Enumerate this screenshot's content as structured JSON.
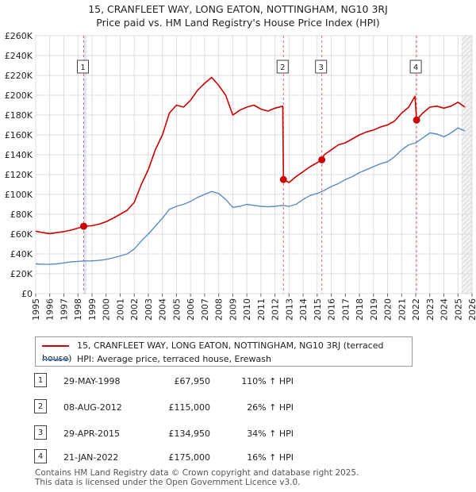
{
  "header": {
    "title_line1": "15, CRANFLEET WAY, LONG EATON, NOTTINGHAM, NG10 3RJ",
    "title_line2": "Price paid vs. HM Land Registry's House Price Index (HPI)"
  },
  "chart_data": {
    "type": "line",
    "xlim": [
      1995,
      2026
    ],
    "ylim": [
      0,
      260000
    ],
    "x_ticks": [
      "1995",
      "1996",
      "1997",
      "1998",
      "1999",
      "2000",
      "2001",
      "2002",
      "2003",
      "2004",
      "2005",
      "2006",
      "2007",
      "2008",
      "2009",
      "2010",
      "2011",
      "2012",
      "2013",
      "2014",
      "2015",
      "2016",
      "2017",
      "2018",
      "2019",
      "2020",
      "2021",
      "2022",
      "2023",
      "2024",
      "2025",
      "2026"
    ],
    "y_ticks": [
      {
        "value": 0,
        "label": "£0"
      },
      {
        "value": 20000,
        "label": "£20K"
      },
      {
        "value": 40000,
        "label": "£40K"
      },
      {
        "value": 60000,
        "label": "£60K"
      },
      {
        "value": 80000,
        "label": "£80K"
      },
      {
        "value": 100000,
        "label": "£100K"
      },
      {
        "value": 120000,
        "label": "£120K"
      },
      {
        "value": 140000,
        "label": "£140K"
      },
      {
        "value": 160000,
        "label": "£160K"
      },
      {
        "value": 180000,
        "label": "£180K"
      },
      {
        "value": 200000,
        "label": "£200K"
      },
      {
        "value": 220000,
        "label": "£220K"
      },
      {
        "value": 240000,
        "label": "£240K"
      },
      {
        "value": 260000,
        "label": "£260K"
      }
    ],
    "grid": true,
    "forecast_start": 2025.25,
    "sale_band": [
      1998.41,
      1998.6
    ],
    "series": [
      {
        "name": "15, CRANFLEET WAY, LONG EATON, NOTTINGHAM, NG10 3RJ (terraced house)",
        "color": "#cc0000",
        "points": [
          [
            1995.0,
            63000
          ],
          [
            1995.5,
            61500
          ],
          [
            1996.0,
            60500
          ],
          [
            1996.5,
            61500
          ],
          [
            1997.0,
            62500
          ],
          [
            1997.5,
            64000
          ],
          [
            1998.0,
            66000
          ],
          [
            1998.41,
            67950
          ],
          [
            1999.0,
            68500
          ],
          [
            1999.5,
            70000
          ],
          [
            2000.0,
            72500
          ],
          [
            2000.5,
            76000
          ],
          [
            2001.0,
            80000
          ],
          [
            2001.5,
            84000
          ],
          [
            2002.0,
            92000
          ],
          [
            2002.5,
            110000
          ],
          [
            2003.0,
            125000
          ],
          [
            2003.5,
            145000
          ],
          [
            2004.0,
            160000
          ],
          [
            2004.5,
            182000
          ],
          [
            2005.0,
            190000
          ],
          [
            2005.5,
            188000
          ],
          [
            2006.0,
            195000
          ],
          [
            2006.5,
            205000
          ],
          [
            2007.0,
            212000
          ],
          [
            2007.5,
            218000
          ],
          [
            2008.0,
            210000
          ],
          [
            2008.5,
            200000
          ],
          [
            2009.0,
            180000
          ],
          [
            2009.5,
            185000
          ],
          [
            2010.0,
            188000
          ],
          [
            2010.5,
            190000
          ],
          [
            2011.0,
            186000
          ],
          [
            2011.5,
            184000
          ],
          [
            2012.0,
            187000
          ],
          [
            2012.55,
            189000
          ],
          [
            2012.6,
            115000
          ],
          [
            2013.0,
            112000
          ],
          [
            2013.5,
            118000
          ],
          [
            2014.0,
            123000
          ],
          [
            2014.5,
            128000
          ],
          [
            2015.0,
            132000
          ],
          [
            2015.33,
            134950
          ],
          [
            2015.5,
            140000
          ],
          [
            2016.0,
            145000
          ],
          [
            2016.5,
            150000
          ],
          [
            2017.0,
            152000
          ],
          [
            2017.5,
            156000
          ],
          [
            2018.0,
            160000
          ],
          [
            2018.5,
            163000
          ],
          [
            2019.0,
            165000
          ],
          [
            2019.5,
            168000
          ],
          [
            2020.0,
            170000
          ],
          [
            2020.5,
            174000
          ],
          [
            2021.0,
            182000
          ],
          [
            2021.5,
            188000
          ],
          [
            2021.95,
            199000
          ],
          [
            2022.06,
            175000
          ],
          [
            2022.5,
            182000
          ],
          [
            2023.0,
            188000
          ],
          [
            2023.5,
            189000
          ],
          [
            2024.0,
            187000
          ],
          [
            2024.5,
            189000
          ],
          [
            2025.0,
            193000
          ],
          [
            2025.5,
            188000
          ]
        ]
      },
      {
        "name": "HPI: Average price, terraced house, Erewash",
        "color": "#5b8cc4",
        "points": [
          [
            1995.0,
            30000
          ],
          [
            1995.5,
            29500
          ],
          [
            1996.0,
            29500
          ],
          [
            1996.5,
            30000
          ],
          [
            1997.0,
            31000
          ],
          [
            1997.5,
            32000
          ],
          [
            1998.0,
            32500
          ],
          [
            1998.5,
            33000
          ],
          [
            1999.0,
            33000
          ],
          [
            1999.5,
            33500
          ],
          [
            2000.0,
            34500
          ],
          [
            2000.5,
            36000
          ],
          [
            2001.0,
            38000
          ],
          [
            2001.5,
            40000
          ],
          [
            2002.0,
            45000
          ],
          [
            2002.5,
            53000
          ],
          [
            2003.0,
            60000
          ],
          [
            2003.5,
            68000
          ],
          [
            2004.0,
            76000
          ],
          [
            2004.5,
            85000
          ],
          [
            2005.0,
            88000
          ],
          [
            2005.5,
            90000
          ],
          [
            2006.0,
            93000
          ],
          [
            2006.5,
            97000
          ],
          [
            2007.0,
            100000
          ],
          [
            2007.5,
            103000
          ],
          [
            2008.0,
            101000
          ],
          [
            2008.5,
            95000
          ],
          [
            2009.0,
            87000
          ],
          [
            2009.5,
            88000
          ],
          [
            2010.0,
            90000
          ],
          [
            2010.5,
            89000
          ],
          [
            2011.0,
            88000
          ],
          [
            2011.5,
            87500
          ],
          [
            2012.0,
            88000
          ],
          [
            2012.5,
            89000
          ],
          [
            2013.0,
            88000
          ],
          [
            2013.5,
            90000
          ],
          [
            2014.0,
            95000
          ],
          [
            2014.5,
            99000
          ],
          [
            2015.0,
            101000
          ],
          [
            2015.5,
            104000
          ],
          [
            2016.0,
            108000
          ],
          [
            2016.5,
            111000
          ],
          [
            2017.0,
            115000
          ],
          [
            2017.5,
            118000
          ],
          [
            2018.0,
            122000
          ],
          [
            2018.5,
            125000
          ],
          [
            2019.0,
            128000
          ],
          [
            2019.5,
            131000
          ],
          [
            2020.0,
            133000
          ],
          [
            2020.5,
            138000
          ],
          [
            2021.0,
            145000
          ],
          [
            2021.5,
            150000
          ],
          [
            2022.0,
            152000
          ],
          [
            2022.5,
            157000
          ],
          [
            2023.0,
            162000
          ],
          [
            2023.5,
            161000
          ],
          [
            2024.0,
            158000
          ],
          [
            2024.5,
            162000
          ],
          [
            2025.0,
            167000
          ],
          [
            2025.5,
            164000
          ]
        ]
      }
    ],
    "sales": [
      {
        "id": "1",
        "x": 1998.41,
        "price": 67950
      },
      {
        "id": "2",
        "x": 2012.6,
        "price": 115000
      },
      {
        "id": "3",
        "x": 2015.33,
        "price": 134950
      },
      {
        "id": "4",
        "x": 2022.06,
        "price": 175000
      }
    ]
  },
  "legend": {
    "property_label": "15, CRANFLEET WAY, LONG EATON, NOTTINGHAM, NG10 3RJ (terraced house)",
    "hpi_label": "HPI: Average price, terraced house, Erewash"
  },
  "sales_table": [
    {
      "id": "1",
      "date": "29-MAY-1998",
      "price": "£67,950",
      "hpi": "110% ↑ HPI"
    },
    {
      "id": "2",
      "date": "08-AUG-2012",
      "price": "£115,000",
      "hpi": "26% ↑ HPI"
    },
    {
      "id": "3",
      "date": "29-APR-2015",
      "price": "£134,950",
      "hpi": "34% ↑ HPI"
    },
    {
      "id": "4",
      "date": "21-JAN-2022",
      "price": "£175,000",
      "hpi": "16% ↑ HPI"
    }
  ],
  "footer": {
    "line1": "Contains HM Land Registry data © Crown copyright and database right 2025.",
    "line2": "This data is licensed under the Open Government Licence v3.0."
  }
}
